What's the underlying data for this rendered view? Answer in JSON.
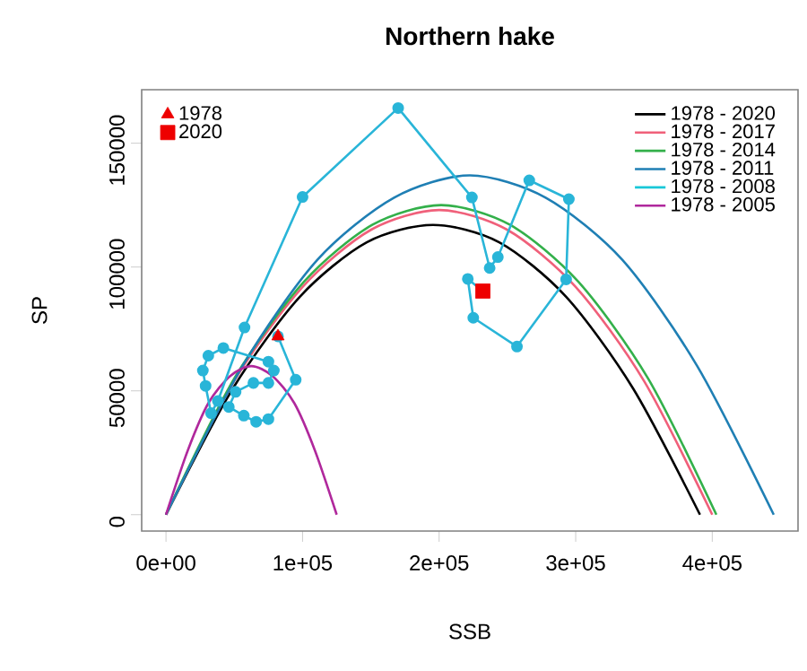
{
  "chart_data": {
    "type": "line",
    "title": "Northern hake",
    "xlabel": "SSB",
    "ylabel": "SP",
    "xlim": [
      -17800,
      462800
    ],
    "ylim": [
      -6600,
      171600
    ],
    "xticks": [
      {
        "value": 0,
        "label": "0e+00"
      },
      {
        "value": 100000,
        "label": "1e+05"
      },
      {
        "value": 200000,
        "label": "2e+05"
      },
      {
        "value": 300000,
        "label": "3e+05"
      },
      {
        "value": 400000,
        "label": "4e+05"
      }
    ],
    "yticks": [
      0,
      50000,
      100000,
      150000
    ],
    "legend": "top right",
    "grid": false,
    "series": [
      {
        "name": "1978 - 2020",
        "color": "#000000",
        "x": [
          0,
          49000,
          98000,
          147000,
          195500,
          244000,
          293000,
          342000,
          391000
        ],
        "values": [
          0,
          51000,
          88000,
          110000,
          117000,
          110000,
          88000,
          51000,
          0
        ]
      },
      {
        "name": "1978 - 2017",
        "color": "#f0607a",
        "x": [
          0,
          50000,
          100000,
          150000,
          200000,
          250000,
          300000,
          350000,
          400000
        ],
        "values": [
          0,
          54000,
          92000,
          115000,
          123000,
          115000,
          92000,
          54000,
          0
        ]
      },
      {
        "name": "1978 - 2014",
        "color": "#33b04a",
        "x": [
          0,
          50000,
          101000,
          151000,
          201500,
          252000,
          302000,
          353000,
          403000
        ],
        "values": [
          0,
          55000,
          94000,
          117000,
          125000,
          117000,
          94000,
          55000,
          0
        ]
      },
      {
        "name": "1978 - 2011",
        "color": "#1f7fb4",
        "x": [
          0,
          56000,
          111000,
          167000,
          222500,
          278000,
          334000,
          389000,
          445000
        ],
        "values": [
          0,
          60000,
          103000,
          128000,
          137000,
          128000,
          103000,
          60000,
          0
        ]
      },
      {
        "name": "1978 - 2008",
        "color": "#19c8d8"
      },
      {
        "name": "1978 - 2005",
        "color": "#b0289c",
        "x": [
          0,
          16000,
          31000,
          47000,
          62500,
          78000,
          94000,
          109000,
          125000
        ],
        "values": [
          0,
          26000,
          45000,
          56000,
          60000,
          56000,
          45000,
          26000,
          0
        ]
      },
      {
        "color": "#29b5d8",
        "marker": "circle",
        "x": [
          82000,
          95000,
          75000,
          66000,
          57000,
          46000,
          51000,
          64000,
          75000,
          79000,
          75000,
          42000,
          31000,
          27000,
          29000,
          33000,
          38000,
          57500,
          100000,
          170000,
          224000,
          237000,
          243000,
          266000,
          295000,
          293000,
          257000,
          225000,
          221000,
          232000
        ],
        "values": [
          72000,
          54500,
          38600,
          37500,
          40000,
          43500,
          49600,
          53200,
          53200,
          58200,
          61800,
          67300,
          64200,
          58200,
          52000,
          41000,
          45900,
          75600,
          128300,
          164200,
          128100,
          99600,
          104000,
          135000,
          127400,
          95000,
          67900,
          79500,
          95200,
          90300
        ]
      },
      {
        "name": "1978",
        "type": "scatter",
        "marker": "triangle",
        "color": "#ee0000",
        "x": [
          82000
        ],
        "values": [
          72000
        ]
      },
      {
        "name": "2020",
        "type": "scatter",
        "marker": "square",
        "color": "#ee0000",
        "x": [
          232000
        ],
        "values": [
          90300
        ]
      }
    ]
  }
}
